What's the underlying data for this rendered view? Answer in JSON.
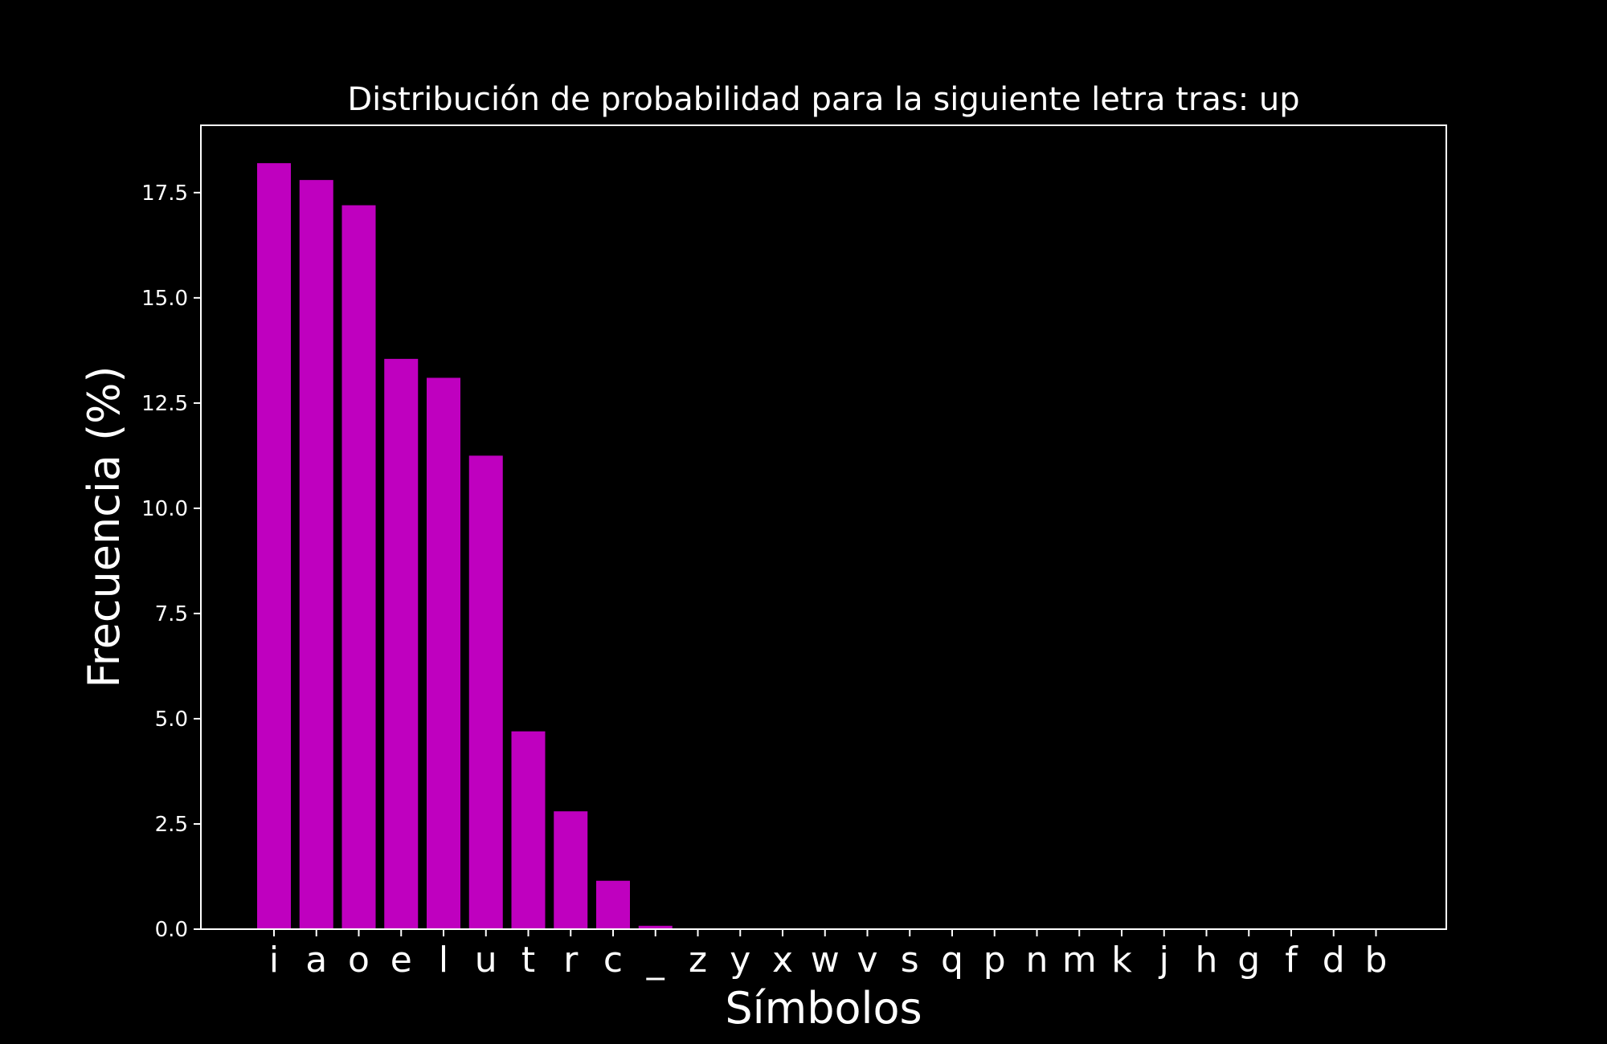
{
  "chart_data": {
    "type": "bar",
    "title": "Distribución de probabilidad para la siguiente letra tras: up",
    "xlabel": "Símbolos",
    "ylabel": "Frecuencia (%)",
    "categories": [
      "i",
      "a",
      "o",
      "e",
      "l",
      "u",
      "t",
      "r",
      "c",
      "_",
      "z",
      "y",
      "x",
      "w",
      "v",
      "s",
      "q",
      "p",
      "n",
      "m",
      "k",
      "j",
      "h",
      "g",
      "f",
      "d",
      "b"
    ],
    "values": [
      18.2,
      17.8,
      17.2,
      13.55,
      13.1,
      11.25,
      4.7,
      2.8,
      1.15,
      0.08,
      0,
      0,
      0,
      0,
      0,
      0,
      0,
      0,
      0,
      0,
      0,
      0,
      0,
      0,
      0,
      0,
      0
    ],
    "ylim": [
      0,
      19.1
    ],
    "yticks": [
      "0.0",
      "2.5",
      "5.0",
      "7.5",
      "10.0",
      "12.5",
      "15.0",
      "17.5"
    ],
    "grid": false,
    "colors": {
      "background": "#000000",
      "bar": "#bf00bf",
      "axes": "#ffffff",
      "text": "#ffffff"
    }
  }
}
